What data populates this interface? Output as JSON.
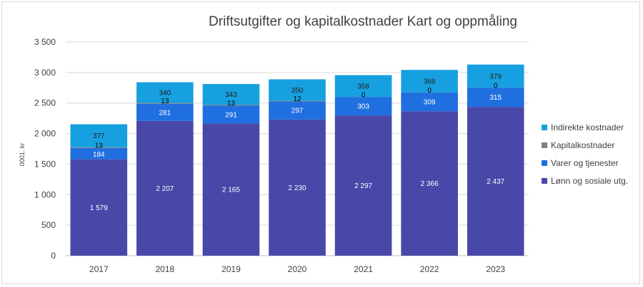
{
  "chart_data": {
    "type": "bar",
    "stacked": true,
    "title": "Driftsutgifter og kapitalkostnader Kart og oppmåling",
    "ylabel": "0001. kr",
    "xlabel": "",
    "ylim": [
      0,
      3500
    ],
    "yticks": [
      0,
      500,
      1000,
      1500,
      2000,
      2500,
      3000,
      3500
    ],
    "ytick_labels": [
      "0",
      "500",
      "1 000",
      "1 500",
      "2 000",
      "2 500",
      "3 000",
      "3 500"
    ],
    "grid": true,
    "legend_position": "right",
    "categories": [
      "2017",
      "2018",
      "2019",
      "2020",
      "2021",
      "2022",
      "2023"
    ],
    "series": [
      {
        "name": "Lønn og sosiale utg.",
        "color": "#4848a8",
        "label_color": "#ffffff",
        "values": [
          1579,
          2207,
          2165,
          2230,
          2297,
          2366,
          2437
        ],
        "labels": [
          "1 579",
          "2 207",
          "2 165",
          "2 230",
          "2 297",
          "2 366",
          "2 437"
        ]
      },
      {
        "name": "Varer og tjenester",
        "color": "#1f6fe0",
        "label_color": "#ffffff",
        "values": [
          184,
          281,
          291,
          297,
          303,
          309,
          315
        ],
        "labels": [
          "184",
          "281",
          "291",
          "297",
          "303",
          "309",
          "315"
        ]
      },
      {
        "name": "Kapitalkostnader",
        "color": "#7f7f7f",
        "label_color": "#000000",
        "values": [
          13,
          13,
          13,
          12,
          0,
          0,
          0
        ],
        "labels": [
          "13",
          "13",
          "13",
          "12",
          "0",
          "0",
          "0"
        ]
      },
      {
        "name": "Indirekte kostnader",
        "color": "#17a0e0",
        "label_color": "#1f1f1f",
        "values": [
          377,
          340,
          343,
          350,
          358,
          368,
          379
        ],
        "labels": [
          "377",
          "340",
          "343",
          "350",
          "358",
          "368",
          "379"
        ]
      }
    ]
  }
}
